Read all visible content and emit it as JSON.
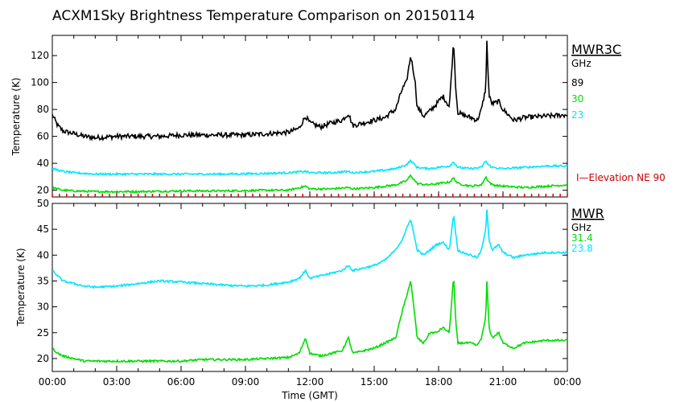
{
  "chart_data": [
    {
      "type": "line",
      "title": "ACXM1Sky Brightness Temperature Comparison on 20150114",
      "ylabel": "Temperature (K)",
      "ylim": [
        15,
        135
      ],
      "yticks": [
        20,
        40,
        60,
        80,
        100,
        120
      ],
      "xlim": [
        0,
        24
      ],
      "legend_title": "MWR3C",
      "legend_unit": "GHz",
      "legend_placement": "right",
      "annotation": "I—Elevation NE 90",
      "annotation_color": "#cc0000",
      "series": [
        {
          "name": "89",
          "color": "#000000",
          "x": [
            0,
            0.25,
            0.5,
            1,
            1.5,
            2,
            3,
            4,
            5,
            6,
            7,
            8,
            9,
            10,
            11,
            11.5,
            11.8,
            12,
            12.5,
            13,
            13.5,
            13.8,
            14,
            14.5,
            15,
            15.5,
            15.8,
            16,
            16.3,
            16.5,
            16.7,
            16.9,
            17,
            17.3,
            17.6,
            17.9,
            18.2,
            18.5,
            18.7,
            18.8,
            18.9,
            19.1,
            19.5,
            19.8,
            20.0,
            20.1,
            20.2,
            20.25,
            20.35,
            20.5,
            20.8,
            21,
            21.5,
            22,
            23,
            24
          ],
          "y": [
            76,
            68,
            64,
            62,
            60,
            59,
            60,
            60,
            60,
            61,
            61,
            61,
            61,
            62,
            63,
            66,
            75,
            70,
            67,
            70,
            72,
            77,
            68,
            70,
            72,
            74,
            78,
            80,
            95,
            100,
            120,
            102,
            82,
            75,
            79,
            84,
            90,
            82,
            131,
            95,
            78,
            76,
            74,
            72,
            80,
            88,
            96,
            130,
            90,
            84,
            86,
            80,
            72,
            74,
            75,
            76
          ]
        },
        {
          "name": "30",
          "color": "#00dd00",
          "x": [
            0,
            0.5,
            1,
            2,
            4,
            6,
            8,
            10,
            11,
            11.8,
            12,
            13,
            13.8,
            14,
            15,
            16,
            16.5,
            16.7,
            17,
            17.5,
            18,
            18.5,
            18.7,
            18.9,
            19.5,
            20,
            20.2,
            20.3,
            20.5,
            21,
            22,
            23,
            24
          ],
          "y": [
            22,
            20,
            19.5,
            19,
            19,
            19.5,
            19.5,
            20,
            20,
            23,
            21,
            21,
            22,
            21,
            22,
            24,
            27,
            31,
            25,
            24,
            25,
            26,
            29,
            25,
            23,
            24,
            30,
            27,
            24,
            23,
            22,
            23,
            24
          ]
        },
        {
          "name": "23",
          "color": "#00e5ff",
          "x": [
            0,
            0.5,
            1,
            2,
            4,
            6,
            8,
            10,
            11,
            11.8,
            12,
            13,
            13.8,
            14,
            15,
            16,
            16.5,
            16.7,
            17,
            17.5,
            18,
            18.5,
            18.7,
            18.9,
            19.5,
            20,
            20.2,
            20.3,
            20.5,
            21,
            22,
            23,
            24
          ],
          "y": [
            36,
            34,
            33,
            32,
            32,
            32,
            32,
            32.5,
            33,
            34,
            33,
            33,
            34,
            33,
            34,
            36,
            39,
            42,
            37,
            36,
            37,
            38,
            41,
            37,
            36,
            37,
            42,
            39,
            37,
            36,
            37,
            38,
            38
          ]
        }
      ]
    },
    {
      "type": "line",
      "ylabel": "Temperature (K)",
      "xlabel": "Time (GMT)",
      "ylim": [
        17.5,
        50
      ],
      "yticks": [
        20,
        25,
        30,
        35,
        40,
        45,
        50
      ],
      "xlim": [
        0,
        24
      ],
      "xtick_labels": [
        "00:00",
        "03:00",
        "06:00",
        "09:00",
        "12:00",
        "15:00",
        "18:00",
        "21:00",
        "00:00"
      ],
      "legend_title": "MWR",
      "legend_unit": "GHz",
      "legend_placement": "right",
      "series": [
        {
          "name": "31.4",
          "color": "#00dd00",
          "x": [
            0,
            0.25,
            0.5,
            1,
            1.5,
            2,
            3,
            4,
            5,
            6,
            7,
            8,
            9,
            10,
            11,
            11.5,
            11.8,
            12,
            12.5,
            13,
            13.5,
            13.8,
            14,
            14.5,
            15,
            15.5,
            16,
            16.3,
            16.5,
            16.7,
            16.9,
            17,
            17.3,
            17.6,
            17.9,
            18.2,
            18.5,
            18.7,
            18.8,
            18.9,
            19.1,
            19.5,
            19.8,
            20.0,
            20.1,
            20.2,
            20.25,
            20.35,
            20.5,
            20.8,
            21,
            21.5,
            22,
            23,
            24
          ],
          "y": [
            22,
            21,
            20.5,
            20,
            19.5,
            19.5,
            19.5,
            19.5,
            19.5,
            19.5,
            19.8,
            19.8,
            19.8,
            20,
            20.2,
            21,
            24,
            21,
            20.5,
            21,
            21.5,
            24,
            21,
            21.5,
            22,
            23,
            24,
            29,
            32,
            35,
            28,
            24,
            23,
            25,
            25,
            26,
            25,
            36,
            27,
            23,
            23,
            23,
            22.5,
            24,
            26,
            28,
            35,
            26,
            24,
            25,
            23,
            22,
            23,
            23.5,
            23.5
          ]
        },
        {
          "name": "23.8",
          "color": "#00e5ff",
          "x": [
            0,
            0.25,
            0.5,
            1,
            1.5,
            2,
            3,
            4,
            5,
            6,
            7,
            8,
            9,
            10,
            11,
            11.5,
            11.8,
            12,
            12.5,
            13,
            13.5,
            13.8,
            14,
            14.5,
            15,
            15.5,
            16,
            16.3,
            16.5,
            16.7,
            16.9,
            17,
            17.3,
            17.6,
            17.9,
            18.2,
            18.5,
            18.7,
            18.8,
            18.9,
            19.1,
            19.5,
            19.8,
            20.0,
            20.1,
            20.2,
            20.25,
            20.35,
            20.5,
            20.8,
            21,
            21.5,
            22,
            23,
            24
          ],
          "y": [
            37,
            36,
            35,
            34.5,
            34,
            33.8,
            34,
            34.5,
            35,
            34.8,
            34.5,
            34.2,
            34,
            34.2,
            34.8,
            35.5,
            37,
            35.5,
            36,
            36.5,
            37,
            38,
            37,
            37.5,
            38,
            39,
            41,
            43,
            45,
            47,
            43,
            41,
            40,
            41,
            42,
            42.5,
            41,
            48,
            44,
            41,
            40.5,
            40,
            39.5,
            41,
            43,
            45,
            49,
            43,
            41,
            42,
            40.5,
            39.5,
            40,
            40.5,
            40.5
          ]
        }
      ]
    }
  ]
}
